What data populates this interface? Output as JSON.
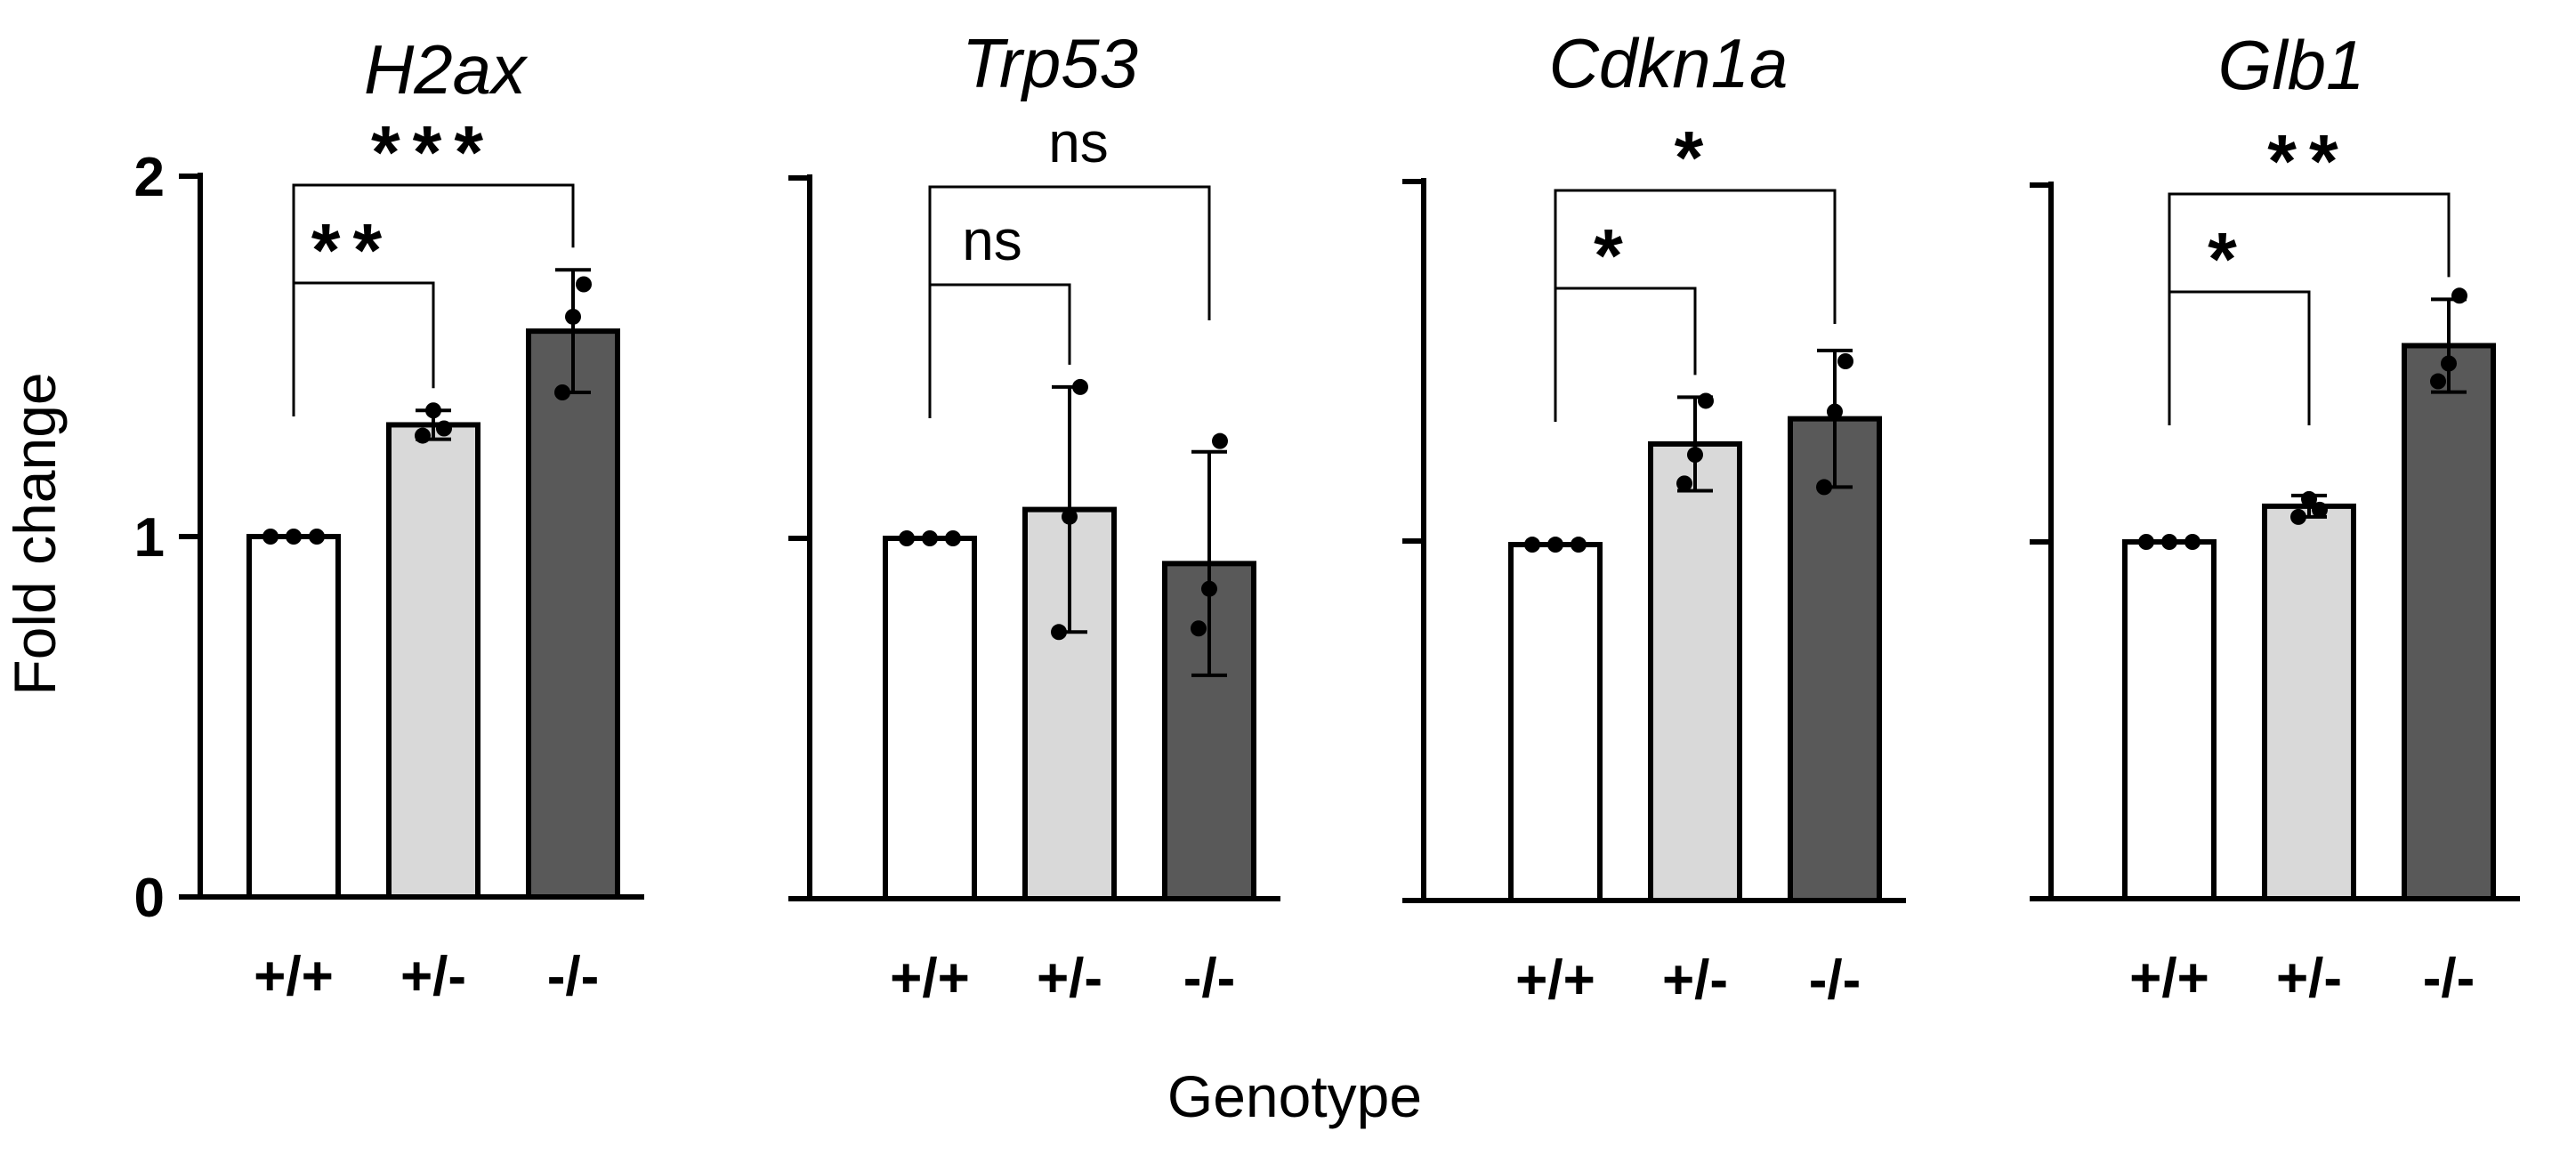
{
  "figure": {
    "ylabel": "Fold change",
    "xlabel": "Genotype"
  },
  "chart_data": [
    {
      "type": "bar",
      "title": "H2ax",
      "categories": [
        "+/+",
        "+/-",
        "-/-"
      ],
      "values": [
        1.0,
        1.31,
        1.57
      ],
      "error": [
        0.0,
        0.04,
        0.17
      ],
      "points": [
        [
          1.0,
          1.0,
          1.0
        ],
        [
          1.28,
          1.35,
          1.3
        ],
        [
          1.4,
          1.61,
          1.7
        ]
      ],
      "ylim": [
        0,
        2
      ],
      "yticks": [
        0,
        1,
        2
      ],
      "ytick_labels": [
        "0",
        "1",
        "2"
      ],
      "bar_colors": [
        "#ffffff",
        "#d9d9d9",
        "#595959"
      ],
      "significance": [
        {
          "from": 0,
          "to": 1,
          "label": "**"
        },
        {
          "from": 0,
          "to": 2,
          "label": "***"
        }
      ]
    },
    {
      "type": "bar",
      "title": "Trp53",
      "categories": [
        "+/+",
        "+/-",
        "-/-"
      ],
      "values": [
        1.0,
        1.08,
        0.93
      ],
      "error": [
        0.0,
        0.34,
        0.31
      ],
      "points": [
        [
          1.0,
          1.0,
          1.0
        ],
        [
          0.74,
          1.06,
          1.42
        ],
        [
          0.75,
          0.86,
          1.27
        ]
      ],
      "ylim": [
        0,
        2
      ],
      "yticks": [
        0,
        1,
        2
      ],
      "ytick_labels": [
        "",
        "",
        ""
      ],
      "bar_colors": [
        "#ffffff",
        "#d9d9d9",
        "#595959"
      ],
      "significance": [
        {
          "from": 0,
          "to": 1,
          "label": "ns"
        },
        {
          "from": 0,
          "to": 2,
          "label": "ns"
        }
      ]
    },
    {
      "type": "bar",
      "title": "Cdkn1a",
      "categories": [
        "+/+",
        "+/-",
        "-/-"
      ],
      "values": [
        0.99,
        1.27,
        1.34
      ],
      "error": [
        0.0,
        0.13,
        0.19
      ],
      "points": [
        [
          0.99,
          0.99,
          0.99
        ],
        [
          1.16,
          1.24,
          1.39
        ],
        [
          1.15,
          1.36,
          1.5
        ]
      ],
      "ylim": [
        0,
        2
      ],
      "yticks": [
        0,
        1,
        2
      ],
      "ytick_labels": [
        "",
        "",
        ""
      ],
      "bar_colors": [
        "#ffffff",
        "#d9d9d9",
        "#595959"
      ],
      "significance": [
        {
          "from": 0,
          "to": 1,
          "label": "*"
        },
        {
          "from": 0,
          "to": 2,
          "label": "*"
        }
      ]
    },
    {
      "type": "bar",
      "title": "Glb1",
      "categories": [
        "+/+",
        "+/-",
        "-/-"
      ],
      "values": [
        1.0,
        1.1,
        1.55
      ],
      "error": [
        0.0,
        0.03,
        0.13
      ],
      "points": [
        [
          1.0,
          1.0,
          1.0
        ],
        [
          1.07,
          1.12,
          1.09
        ],
        [
          1.45,
          1.5,
          1.69
        ]
      ],
      "ylim": [
        0,
        2
      ],
      "yticks": [
        0,
        1,
        2
      ],
      "ytick_labels": [
        "",
        "",
        ""
      ],
      "bar_colors": [
        "#ffffff",
        "#d9d9d9",
        "#595959"
      ],
      "significance": [
        {
          "from": 0,
          "to": 1,
          "label": "*"
        },
        {
          "from": 0,
          "to": 2,
          "label": "**"
        }
      ]
    }
  ]
}
